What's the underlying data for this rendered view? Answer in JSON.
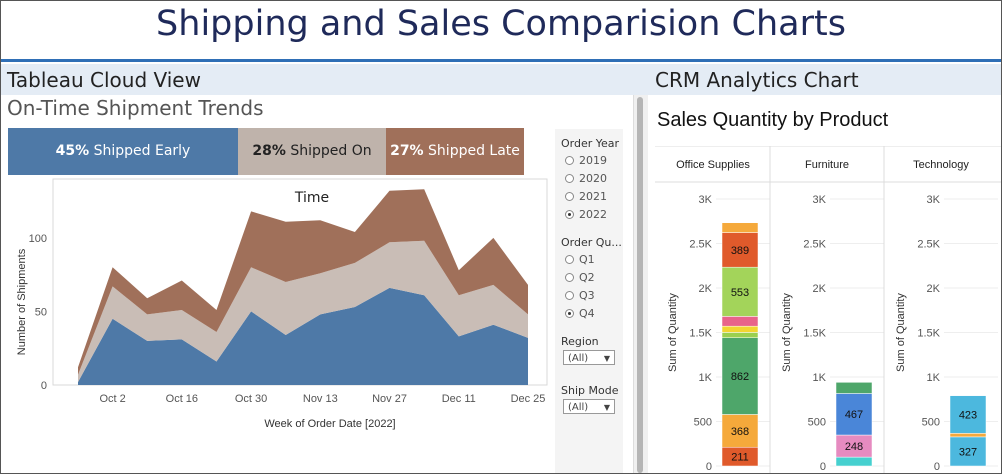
{
  "page": {
    "title": "Shipping and Sales Comparision Charts"
  },
  "left_section": {
    "header": "Tableau Cloud View",
    "chart_title": "On-Time Shipment Trends",
    "kpis": [
      {
        "pct": "45%",
        "label": "Shipped Early",
        "color": "#4e79a7"
      },
      {
        "pct": "28%",
        "label": "Shipped On Time",
        "color": "#bfb3ab"
      },
      {
        "pct": "27%",
        "label": "Shipped Late",
        "color": "#a0705a"
      }
    ],
    "filters": {
      "order_year": {
        "title": "Order Year",
        "options": [
          "2019",
          "2020",
          "2021",
          "2022"
        ],
        "selected": "2022"
      },
      "order_quarter": {
        "title": "Order Qu...",
        "options": [
          "Q1",
          "Q2",
          "Q3",
          "Q4"
        ],
        "selected": "Q4"
      },
      "region": {
        "title": "Region",
        "value": "(All)"
      },
      "ship_mode": {
        "title": "Ship Mode",
        "value": "(All)"
      }
    }
  },
  "right_section": {
    "header": "CRM Analytics Chart",
    "chart_title": "Sales Quantity by Product"
  },
  "chart_data": [
    {
      "type": "area",
      "stacked": true,
      "xlabel": "Week of Order Date [2022]",
      "ylabel": "Number of Shipments",
      "ylim": [
        0,
        140
      ],
      "yticks": [
        0,
        50,
        100
      ],
      "x_tick_labels": [
        "Oct 2",
        "Oct 16",
        "Oct 30",
        "Nov 13",
        "Nov 27",
        "Dec 11",
        "Dec 25"
      ],
      "x_tick_index": [
        1,
        3,
        5,
        7,
        9,
        11,
        13
      ],
      "grid": false,
      "colors": {
        "early": "#4e79a7",
        "ontime": "#c9bdb6",
        "late": "#a0705a"
      },
      "series": [
        {
          "key": "early",
          "values": [
            2,
            45,
            30,
            31,
            16,
            50,
            34,
            48,
            53,
            66,
            61,
            33,
            41,
            32
          ]
        },
        {
          "key": "ontime",
          "values": [
            5,
            22,
            18,
            20,
            20,
            30,
            36,
            28,
            30,
            31,
            37,
            28,
            27,
            16
          ]
        },
        {
          "key": "late",
          "values": [
            5,
            13,
            11,
            20,
            15,
            38,
            41,
            36,
            21,
            35,
            35,
            17,
            32,
            20
          ]
        }
      ]
    },
    {
      "type": "bar",
      "stacked": true,
      "ylabel": "Sum of Quantity",
      "ylim": [
        0,
        3000
      ],
      "ytick_labels": [
        "0",
        "500",
        "1K",
        "1.5K",
        "2K",
        "2.5K",
        "3K"
      ],
      "categories": [
        "Office Supplies",
        "Furniture",
        "Technology"
      ],
      "stacks": [
        {
          "category": "Office Supplies",
          "segments": [
            {
              "value": 211,
              "label": "211",
              "color": "#e05a2b"
            },
            {
              "value": 368,
              "label": "368",
              "color": "#f5a93b"
            },
            {
              "value": 862,
              "label": "862",
              "color": "#4ea66a"
            },
            {
              "value": 60,
              "label": "",
              "color": "#9bd04f"
            },
            {
              "value": 70,
              "label": "",
              "color": "#f2d531"
            },
            {
              "value": 110,
              "label": "",
              "color": "#e8638a"
            },
            {
              "value": 553,
              "label": "553",
              "color": "#a3d45a"
            },
            {
              "value": 389,
              "label": "389",
              "color": "#e05a2b"
            },
            {
              "value": 110,
              "label": "",
              "color": "#f5a93b"
            }
          ]
        },
        {
          "category": "Furniture",
          "segments": [
            {
              "value": 100,
              "label": "",
              "color": "#46d0cf"
            },
            {
              "value": 248,
              "label": "248",
              "color": "#e68bc0"
            },
            {
              "value": 467,
              "label": "467",
              "color": "#4a86d8"
            },
            {
              "value": 125,
              "label": "",
              "color": "#4ea66a"
            }
          ]
        },
        {
          "category": "Technology",
          "segments": [
            {
              "value": 327,
              "label": "327",
              "color": "#4cb8de"
            },
            {
              "value": 40,
              "label": "",
              "color": "#f5a93b"
            },
            {
              "value": 423,
              "label": "423",
              "color": "#4cb8de"
            }
          ]
        }
      ]
    }
  ]
}
